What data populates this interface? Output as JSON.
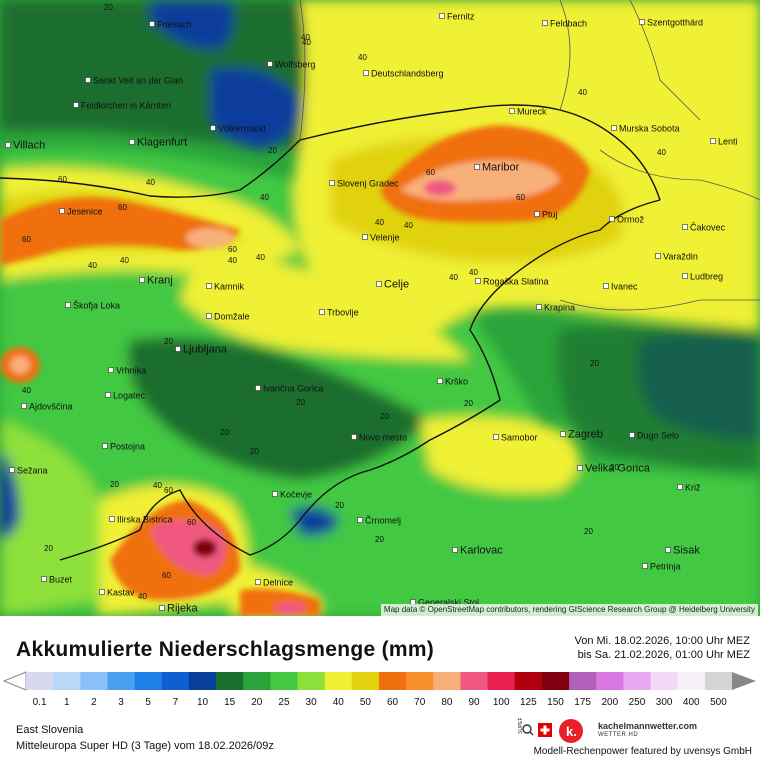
{
  "title": "Akkumulierte Niederschlagsmenge (mm)",
  "period": {
    "from": "Von Mi. 18.02.2026, 10:00 Uhr MEZ",
    "to": "bis Sa. 21.02.2026, 01:00 Uhr MEZ"
  },
  "region": "East Slovenia",
  "model": "Mitteleuropa Super HD (3 Tage) vom 18.02.2026/09z",
  "attribution": "Map data © OpenStreetMap contributors, rendering GIScience Research Group @ Heidelberg University",
  "credit": "Modell-Rechenpower featured by uvensys GmbH",
  "brand": {
    "name": "kachelmannwetter.com",
    "sub": "WETTER HD",
    "badge": "SUPER HD"
  },
  "legend": {
    "labels": [
      "0.1",
      "1",
      "2",
      "3",
      "5",
      "7",
      "10",
      "15",
      "20",
      "25",
      "30",
      "40",
      "50",
      "60",
      "70",
      "80",
      "90",
      "100",
      "125",
      "150",
      "175",
      "200",
      "250",
      "300",
      "400",
      "500"
    ],
    "colors": [
      "#d8d8ee",
      "#b8d8f8",
      "#88c0f8",
      "#4aa0f0",
      "#1e80e8",
      "#0e5fd0",
      "#0a3e9c",
      "#1a6e2e",
      "#2aa43a",
      "#42c842",
      "#8ee03a",
      "#f0f034",
      "#e0d20c",
      "#f07010",
      "#f8902c",
      "#f8b07a",
      "#f05880",
      "#e82050",
      "#b00010",
      "#800010",
      "#b060b8",
      "#d878e0",
      "#e8a8f0",
      "#f4d8f8",
      "#f8f0f8",
      "#d4d4d4"
    ]
  },
  "cities": [
    {
      "name": "Friesach",
      "big": false
    },
    {
      "name": "Fernitz",
      "big": false
    },
    {
      "name": "Feldbach",
      "big": false
    },
    {
      "name": "Szentgotthárd",
      "big": false
    },
    {
      "name": "Wolfsberg",
      "big": false
    },
    {
      "name": "Sankt Veit an der Glan",
      "big": false
    },
    {
      "name": "Deutschlandsberg",
      "big": false
    },
    {
      "name": "Feldkirchen in Kärnten",
      "big": false
    },
    {
      "name": "Mureck",
      "big": false
    },
    {
      "name": "Völkermarkt",
      "big": false
    },
    {
      "name": "Murska Sobota",
      "big": false
    },
    {
      "name": "Villach",
      "big": true
    },
    {
      "name": "Klagenfurt",
      "big": true
    },
    {
      "name": "Lenti",
      "big": false
    },
    {
      "name": "Maribor",
      "big": true
    },
    {
      "name": "Slovenj Gradec",
      "big": false
    },
    {
      "name": "Jesenice",
      "big": false
    },
    {
      "name": "Ptuj",
      "big": false
    },
    {
      "name": "Ormož",
      "big": false
    },
    {
      "name": "Čakovec",
      "big": false
    },
    {
      "name": "Velenje",
      "big": false
    },
    {
      "name": "Varaždin",
      "big": false
    },
    {
      "name": "Kranj",
      "big": true
    },
    {
      "name": "Kamnik",
      "big": false
    },
    {
      "name": "Celje",
      "big": true
    },
    {
      "name": "Rogaška Slatina",
      "big": false
    },
    {
      "name": "Ivanec",
      "big": false
    },
    {
      "name": "Ludbreg",
      "big": false
    },
    {
      "name": "Škofja Loka",
      "big": false
    },
    {
      "name": "Domžale",
      "big": false
    },
    {
      "name": "Trbovlje",
      "big": false
    },
    {
      "name": "Krapina",
      "big": false
    },
    {
      "name": "Ljubljana",
      "big": true
    },
    {
      "name": "Vrhnika",
      "big": false
    },
    {
      "name": "Krško",
      "big": false
    },
    {
      "name": "Ivančna Gorica",
      "big": false
    },
    {
      "name": "Logatec",
      "big": false
    },
    {
      "name": "Ajdovščina",
      "big": false
    },
    {
      "name": "Samobor",
      "big": false
    },
    {
      "name": "Zagreb",
      "big": true
    },
    {
      "name": "Dugo Selo",
      "big": false
    },
    {
      "name": "Novo mesto",
      "big": false
    },
    {
      "name": "Postojna",
      "big": false
    },
    {
      "name": "Sežana",
      "big": false
    },
    {
      "name": "Velika Gorica",
      "big": true
    },
    {
      "name": "Kočevje",
      "big": false
    },
    {
      "name": "Križ",
      "big": false
    },
    {
      "name": "Ilirska Bistrica",
      "big": false
    },
    {
      "name": "Črnomelj",
      "big": false
    },
    {
      "name": "Karlovac",
      "big": true
    },
    {
      "name": "Sisak",
      "big": true
    },
    {
      "name": "Petrinja",
      "big": false
    },
    {
      "name": "Buzet",
      "big": false
    },
    {
      "name": "Delnice",
      "big": false
    },
    {
      "name": "Kastav",
      "big": false
    },
    {
      "name": "Rijeka",
      "big": true
    },
    {
      "name": "Generalski Stol",
      "big": false
    }
  ],
  "contours": [
    "20",
    "40",
    "60"
  ]
}
